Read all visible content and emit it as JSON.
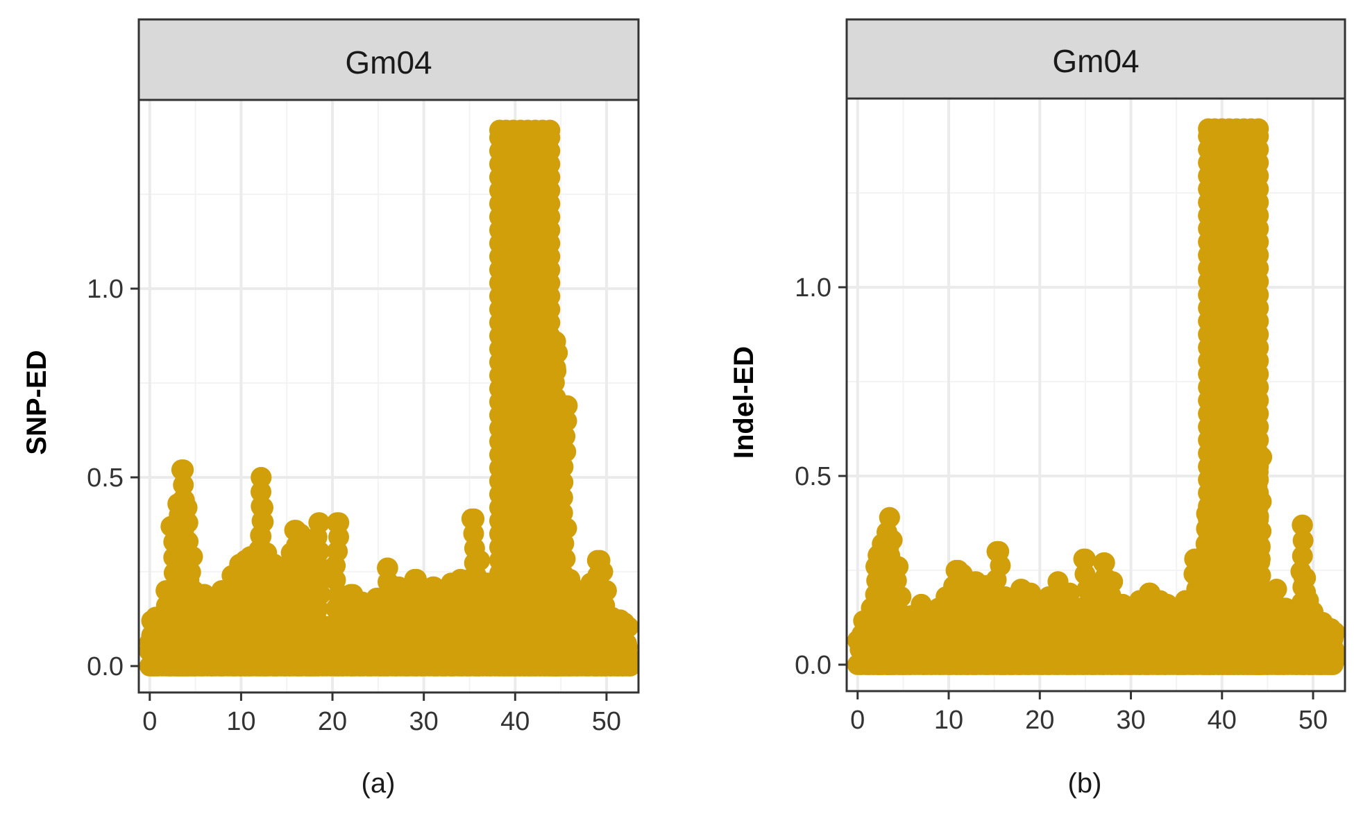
{
  "colors": {
    "point": "#D19F0A",
    "strip_fill": "#D9D9D9",
    "grid_major": "#EBEBEB",
    "grid_minor": "#F3F3F3",
    "frame": "#333333"
  },
  "chart_data": [
    {
      "type": "scatter",
      "panel": "a",
      "strip_title": "Gm04",
      "ylabel": "SNP-ED",
      "xlabel": "",
      "caption": "(a)",
      "xlim": [
        -1.2,
        53.5
      ],
      "ylim": [
        -0.07,
        1.5
      ],
      "x_ticks": [
        0,
        10,
        20,
        30,
        40,
        50
      ],
      "x_tick_labels": [
        "0",
        "10",
        "20",
        "30",
        "40",
        "50"
      ],
      "y_ticks": [
        0.0,
        0.5,
        1.0
      ],
      "y_tick_labels": [
        "0.0",
        "0.5",
        "1.0"
      ],
      "points": [
        [
          0.2,
          0.12
        ],
        [
          1.0,
          0.1
        ],
        [
          2.0,
          0.2
        ],
        [
          2.5,
          0.37
        ],
        [
          3.0,
          0.36
        ],
        [
          3.3,
          0.43
        ],
        [
          3.5,
          0.52
        ],
        [
          3.6,
          0.44
        ],
        [
          3.8,
          0.42
        ],
        [
          4.0,
          0.38
        ],
        [
          4.2,
          0.33
        ],
        [
          4.4,
          0.29
        ],
        [
          4.8,
          0.2
        ],
        [
          6,
          0.19
        ],
        [
          7,
          0.18
        ],
        [
          8,
          0.2
        ],
        [
          9,
          0.24
        ],
        [
          10,
          0.27
        ],
        [
          10.5,
          0.28
        ],
        [
          11,
          0.29
        ],
        [
          12.2,
          0.5
        ],
        [
          12.4,
          0.42
        ],
        [
          12.8,
          0.3
        ],
        [
          13.5,
          0.27
        ],
        [
          14,
          0.21
        ],
        [
          15,
          0.25
        ],
        [
          15.5,
          0.3
        ],
        [
          16,
          0.36
        ],
        [
          16.5,
          0.35
        ],
        [
          17,
          0.33
        ],
        [
          17.5,
          0.3
        ],
        [
          18,
          0.28
        ],
        [
          18.5,
          0.38
        ],
        [
          20.5,
          0.38
        ],
        [
          21,
          0.17
        ],
        [
          22,
          0.19
        ],
        [
          23,
          0.17
        ],
        [
          24,
          0.16
        ],
        [
          25,
          0.18
        ],
        [
          26,
          0.26
        ],
        [
          27,
          0.21
        ],
        [
          28,
          0.18
        ],
        [
          29,
          0.23
        ],
        [
          30,
          0.17
        ],
        [
          31,
          0.21
        ],
        [
          32,
          0.2
        ],
        [
          33,
          0.22
        ],
        [
          34,
          0.23
        ],
        [
          35,
          0.23
        ],
        [
          35.5,
          0.39
        ],
        [
          36,
          0.28
        ],
        [
          37,
          0.22
        ],
        [
          38.3,
          1.42
        ],
        [
          39,
          1.42
        ],
        [
          39.8,
          1.42
        ],
        [
          40.6,
          1.42
        ],
        [
          41.4,
          1.42
        ],
        [
          42.2,
          1.42
        ],
        [
          43,
          1.42
        ],
        [
          43.8,
          1.42
        ],
        [
          44.3,
          0.86
        ],
        [
          44.5,
          0.83
        ],
        [
          44.4,
          0.7
        ],
        [
          45.5,
          0.69
        ],
        [
          44.6,
          0.6
        ],
        [
          44.6,
          0.5
        ],
        [
          44.5,
          0.4
        ],
        [
          44.7,
          0.3
        ],
        [
          45,
          0.22
        ],
        [
          46,
          0.23
        ],
        [
          47,
          0.2
        ],
        [
          48,
          0.18
        ],
        [
          48.5,
          0.22
        ],
        [
          49,
          0.28
        ],
        [
          49.5,
          0.25
        ],
        [
          50,
          0.2
        ],
        [
          50.5,
          0.12
        ],
        [
          51,
          0.09
        ],
        [
          52,
          0.05
        ],
        [
          52.3,
          0.03
        ],
        [
          52.5,
          0.02
        ]
      ]
    },
    {
      "type": "scatter",
      "panel": "b",
      "strip_title": "Gm04",
      "ylabel": "Indel-ED",
      "xlabel": "",
      "caption": "(b)",
      "xlim": [
        -1.2,
        53.5
      ],
      "ylim": [
        -0.07,
        1.5
      ],
      "x_ticks": [
        0,
        10,
        20,
        30,
        40,
        50
      ],
      "x_tick_labels": [
        "0",
        "10",
        "20",
        "30",
        "40",
        "50"
      ],
      "y_ticks": [
        0.0,
        0.5,
        1.0
      ],
      "y_tick_labels": [
        "0.0",
        "0.5",
        "1.0"
      ],
      "points": [
        [
          0.5,
          0.08
        ],
        [
          1.0,
          0.06
        ],
        [
          1.5,
          0.15
        ],
        [
          2.0,
          0.26
        ],
        [
          2.3,
          0.29
        ],
        [
          2.7,
          0.32
        ],
        [
          3.0,
          0.31
        ],
        [
          3.5,
          0.39
        ],
        [
          3.8,
          0.33
        ],
        [
          4.2,
          0.26
        ],
        [
          4.5,
          0.18
        ],
        [
          5,
          0.1
        ],
        [
          6,
          0.13
        ],
        [
          7,
          0.16
        ],
        [
          8,
          0.14
        ],
        [
          9,
          0.15
        ],
        [
          10,
          0.18
        ],
        [
          10.8,
          0.25
        ],
        [
          11.5,
          0.24
        ],
        [
          12,
          0.22
        ],
        [
          13,
          0.22
        ],
        [
          14,
          0.21
        ],
        [
          15.5,
          0.3
        ],
        [
          16,
          0.18
        ],
        [
          17,
          0.17
        ],
        [
          18,
          0.2
        ],
        [
          19,
          0.19
        ],
        [
          20,
          0.15
        ],
        [
          21,
          0.18
        ],
        [
          22,
          0.22
        ],
        [
          23,
          0.19
        ],
        [
          24,
          0.15
        ],
        [
          25,
          0.28
        ],
        [
          26,
          0.21
        ],
        [
          27,
          0.27
        ],
        [
          28,
          0.22
        ],
        [
          29,
          0.16
        ],
        [
          30,
          0.15
        ],
        [
          31,
          0.17
        ],
        [
          32,
          0.19
        ],
        [
          33,
          0.17
        ],
        [
          34,
          0.16
        ],
        [
          35,
          0.15
        ],
        [
          36,
          0.17
        ],
        [
          37,
          0.28
        ],
        [
          38.5,
          1.42
        ],
        [
          39.2,
          1.42
        ],
        [
          40,
          1.42
        ],
        [
          40.8,
          1.42
        ],
        [
          41.6,
          1.42
        ],
        [
          42.4,
          1.42
        ],
        [
          43.2,
          1.42
        ],
        [
          44,
          1.42
        ],
        [
          38.3,
          0.4
        ],
        [
          38.5,
          0.3
        ],
        [
          44.1,
          0.55
        ],
        [
          44.0,
          0.35
        ],
        [
          44.2,
          0.28
        ],
        [
          43.9,
          0.22
        ],
        [
          45,
          0.19
        ],
        [
          46,
          0.2
        ],
        [
          47,
          0.15
        ],
        [
          48,
          0.14
        ],
        [
          48.8,
          0.37
        ],
        [
          49,
          0.23
        ],
        [
          49.5,
          0.17
        ],
        [
          50,
          0.14
        ],
        [
          50.5,
          0.1
        ],
        [
          51,
          0.08
        ],
        [
          51.5,
          0.06
        ],
        [
          52,
          0.04
        ],
        [
          52.3,
          0.03
        ]
      ]
    }
  ]
}
